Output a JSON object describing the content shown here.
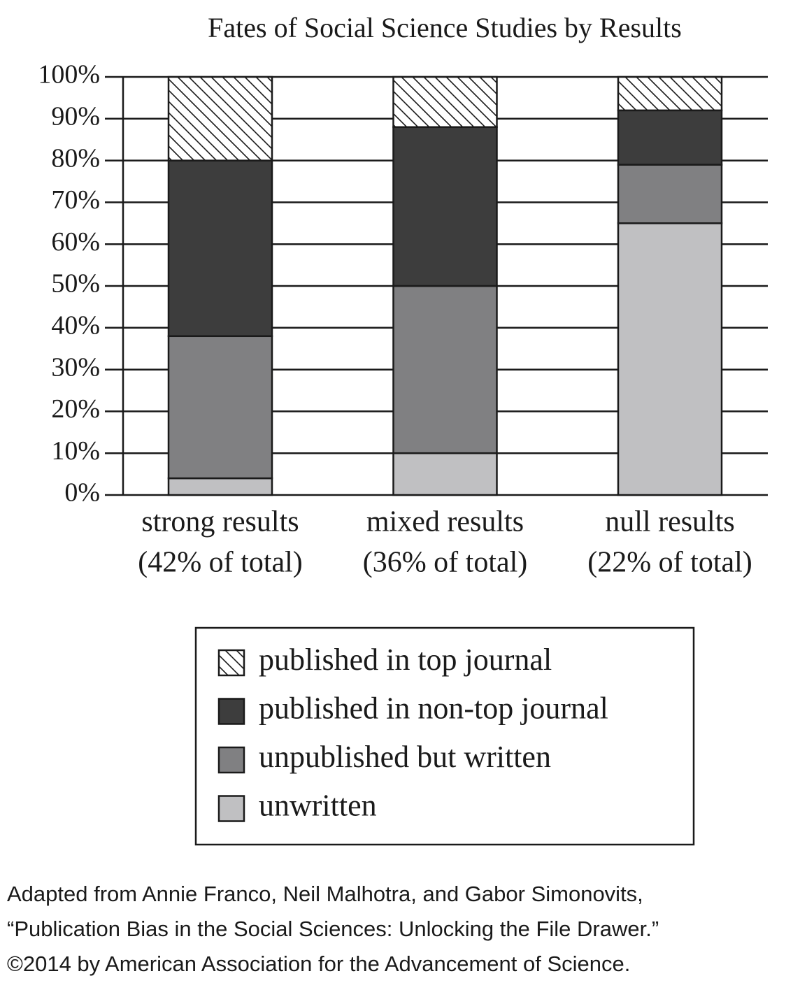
{
  "chart_data": {
    "type": "stacked_bar",
    "title": "Fates of Social Science Studies by Results",
    "categories": [
      "strong results",
      "mixed results",
      "null results"
    ],
    "category_notes": [
      "(42% of total)",
      "(36% of total)",
      "(22% of total)"
    ],
    "series": [
      {
        "name": "unwritten",
        "color": "#c0c0c2",
        "values": [
          4,
          10,
          65
        ]
      },
      {
        "name": "unpublished but written",
        "color": "#808082",
        "values": [
          34,
          40,
          14
        ]
      },
      {
        "name": "published in non-top journal",
        "color": "#3d3d3d",
        "values": [
          42,
          38,
          13
        ]
      },
      {
        "name": "published in top journal",
        "color": "#ffffff",
        "pattern": "hatch",
        "values": [
          20,
          12,
          8
        ]
      }
    ],
    "legend_order": "reverse",
    "ylim": [
      0,
      100
    ],
    "yticks": [
      {
        "value": 0,
        "label": "0%"
      },
      {
        "value": 10,
        "label": "10%"
      },
      {
        "value": 20,
        "label": "20%"
      },
      {
        "value": 30,
        "label": "30%"
      },
      {
        "value": 40,
        "label": "40%"
      },
      {
        "value": 50,
        "label": "50%"
      },
      {
        "value": 60,
        "label": "60%"
      },
      {
        "value": 70,
        "label": "70%"
      },
      {
        "value": 80,
        "label": "80%"
      },
      {
        "value": 90,
        "label": "90%"
      },
      {
        "value": 100,
        "label": "100%"
      }
    ],
    "grid": true,
    "source": [
      "Adapted from Annie Franco, Neil Malhotra, and Gabor Simonovits,",
      "“Publication Bias in the Social Sciences: Unlocking the File Drawer.”",
      "©2014 by American Association for the Advancement of Science."
    ]
  }
}
